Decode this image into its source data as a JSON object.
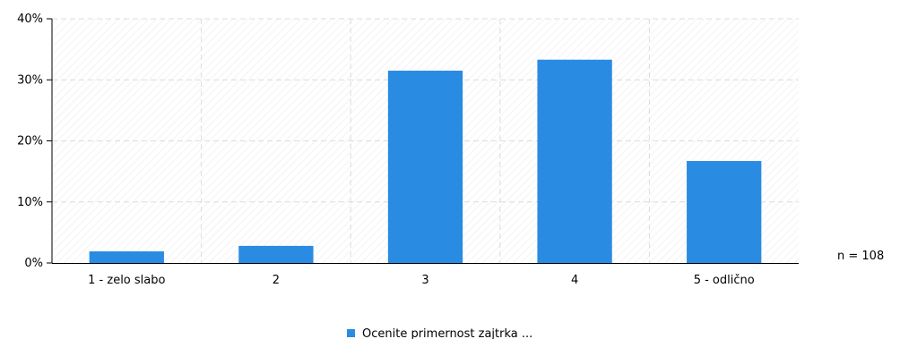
{
  "chart_data": {
    "type": "bar",
    "categories": [
      "1 - zelo slabo",
      "2",
      "3",
      "4",
      "5 - odlično"
    ],
    "series": [
      {
        "name": "Ocenite primernost zajtrka ...",
        "values": [
          1.9,
          2.8,
          31.5,
          33.3,
          16.7
        ],
        "color": "#2a8be3"
      }
    ],
    "ylim": [
      0,
      40
    ],
    "yticks": [
      0,
      10,
      20,
      30,
      40
    ],
    "ytick_labels": [
      "0%",
      "10%",
      "20%",
      "30%",
      "40%"
    ],
    "grid": true,
    "legend_position": "bottom-center",
    "n_label": "n = 108"
  }
}
